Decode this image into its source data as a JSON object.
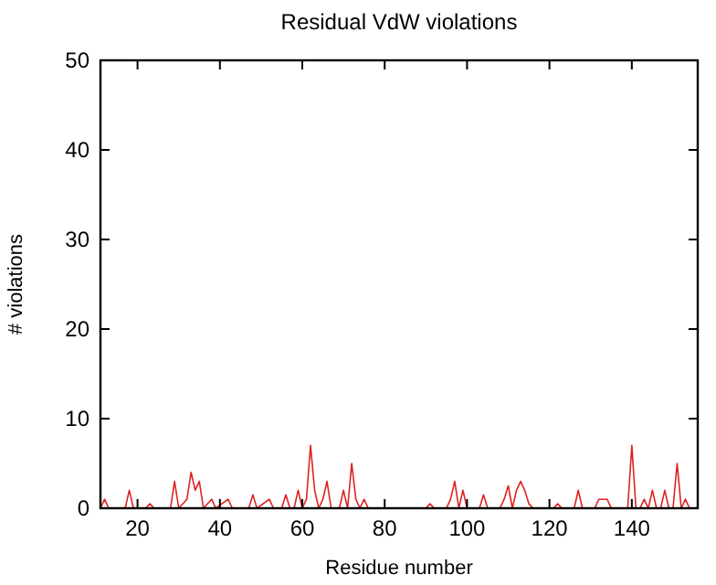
{
  "chart_data": {
    "type": "line",
    "title": "Residual VdW violations",
    "xlabel": "Residue number",
    "ylabel": "# violations",
    "xlim": [
      11,
      156
    ],
    "xticks": [
      20,
      40,
      60,
      80,
      100,
      120,
      140
    ],
    "ylim": [
      0,
      50
    ],
    "yticks": [
      0,
      10,
      20,
      30,
      40,
      50
    ],
    "grid": false,
    "line_style": "solid",
    "series": [
      {
        "color": "#dd2222",
        "x": [
          11,
          12,
          13,
          17,
          18,
          19,
          22,
          23,
          24,
          28,
          29,
          30,
          32,
          33,
          34,
          35,
          36,
          38,
          39,
          42,
          43,
          47,
          48,
          49,
          52,
          53,
          55,
          56,
          57,
          58,
          59,
          60,
          61,
          62,
          63,
          64,
          65,
          66,
          67,
          69,
          70,
          71,
          72,
          73,
          74,
          75,
          76,
          90,
          91,
          92,
          95,
          96,
          97,
          98,
          99,
          100,
          103,
          104,
          105,
          108,
          109,
          110,
          111,
          112,
          113,
          114,
          115,
          116,
          121,
          122,
          123,
          126,
          127,
          128,
          131,
          132,
          133,
          134,
          135,
          139,
          140,
          141,
          142,
          143,
          144,
          145,
          146,
          147,
          148,
          149,
          150,
          151,
          152,
          153,
          154
        ],
        "values": [
          0,
          1,
          0,
          0,
          2,
          0,
          0,
          0.5,
          0,
          0,
          3,
          0,
          1,
          4,
          2,
          3,
          0,
          1,
          0,
          1,
          0,
          0,
          1.5,
          0,
          1,
          0,
          0,
          1.5,
          0,
          0,
          2,
          0,
          1,
          7,
          2,
          0,
          1,
          3,
          0,
          0,
          2,
          0,
          5,
          1,
          0,
          1,
          0,
          0,
          0.5,
          0,
          0,
          1,
          3,
          0,
          2,
          0,
          0,
          1.5,
          0,
          0,
          1,
          2.5,
          0,
          2,
          3,
          2,
          0.5,
          0,
          0,
          0.5,
          0,
          0,
          2,
          0,
          0,
          1,
          1,
          1,
          0,
          0,
          7,
          0,
          0,
          1,
          0,
          2,
          0,
          0,
          2,
          0,
          0,
          5,
          0,
          1,
          0
        ]
      }
    ]
  }
}
